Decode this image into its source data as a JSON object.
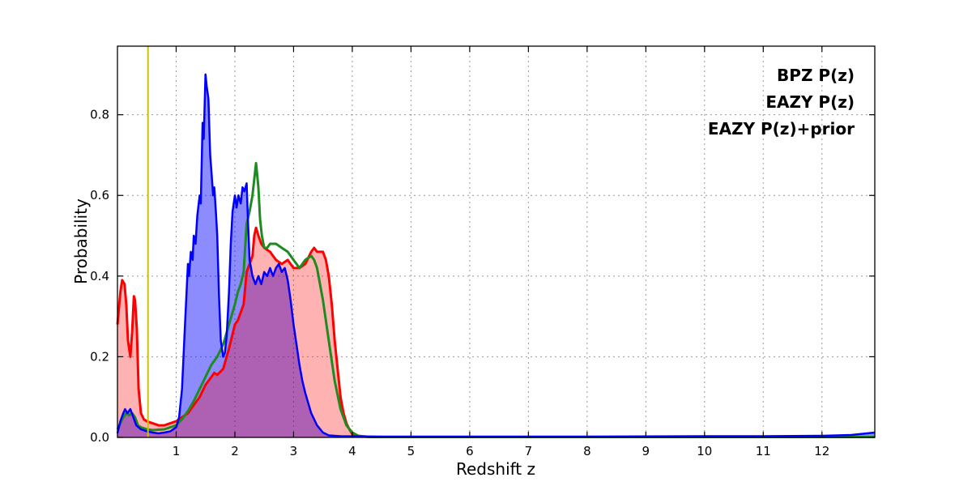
{
  "chart_data": {
    "type": "line",
    "title": "",
    "xlabel": "Redshift z",
    "ylabel": "Probability",
    "xlim": [
      0,
      12.9
    ],
    "ylim": [
      0,
      0.97
    ],
    "xticks": [
      1,
      2,
      3,
      4,
      5,
      6,
      7,
      8,
      9,
      10,
      11,
      12
    ],
    "yticks": [
      0.0,
      0.2,
      0.4,
      0.6,
      0.8
    ],
    "grid": true,
    "grid_style": "dashed",
    "legend_position": "upper right",
    "vline": {
      "x": 0.52,
      "color": "#c8c400",
      "width": 2
    },
    "series": [
      {
        "name": "BPZ P(z)",
        "color": "#0000ff",
        "fill": true,
        "fill_opacity": 0.45,
        "line_width": 2.5,
        "points": [
          [
            0,
            0.01
          ],
          [
            0.05,
            0.04
          ],
          [
            0.1,
            0.06
          ],
          [
            0.13,
            0.07
          ],
          [
            0.17,
            0.06
          ],
          [
            0.22,
            0.07
          ],
          [
            0.27,
            0.05
          ],
          [
            0.32,
            0.03
          ],
          [
            0.4,
            0.02
          ],
          [
            0.5,
            0.015
          ],
          [
            0.6,
            0.012
          ],
          [
            0.7,
            0.01
          ],
          [
            0.8,
            0.012
          ],
          [
            0.9,
            0.015
          ],
          [
            1.0,
            0.025
          ],
          [
            1.05,
            0.05
          ],
          [
            1.1,
            0.12
          ],
          [
            1.15,
            0.28
          ],
          [
            1.2,
            0.43
          ],
          [
            1.22,
            0.4
          ],
          [
            1.25,
            0.46
          ],
          [
            1.28,
            0.44
          ],
          [
            1.3,
            0.5
          ],
          [
            1.33,
            0.48
          ],
          [
            1.36,
            0.55
          ],
          [
            1.4,
            0.6
          ],
          [
            1.42,
            0.58
          ],
          [
            1.45,
            0.78
          ],
          [
            1.47,
            0.74
          ],
          [
            1.5,
            0.9
          ],
          [
            1.52,
            0.87
          ],
          [
            1.55,
            0.84
          ],
          [
            1.58,
            0.7
          ],
          [
            1.6,
            0.66
          ],
          [
            1.63,
            0.6
          ],
          [
            1.65,
            0.62
          ],
          [
            1.68,
            0.55
          ],
          [
            1.7,
            0.5
          ],
          [
            1.73,
            0.35
          ],
          [
            1.76,
            0.24
          ],
          [
            1.8,
            0.2
          ],
          [
            1.83,
            0.21
          ],
          [
            1.86,
            0.25
          ],
          [
            1.9,
            0.36
          ],
          [
            1.93,
            0.48
          ],
          [
            1.96,
            0.56
          ],
          [
            2.0,
            0.6
          ],
          [
            2.03,
            0.57
          ],
          [
            2.06,
            0.6
          ],
          [
            2.1,
            0.58
          ],
          [
            2.13,
            0.62
          ],
          [
            2.16,
            0.61
          ],
          [
            2.2,
            0.63
          ],
          [
            2.22,
            0.55
          ],
          [
            2.25,
            0.44
          ],
          [
            2.3,
            0.4
          ],
          [
            2.35,
            0.38
          ],
          [
            2.4,
            0.4
          ],
          [
            2.45,
            0.38
          ],
          [
            2.5,
            0.41
          ],
          [
            2.55,
            0.4
          ],
          [
            2.6,
            0.42
          ],
          [
            2.65,
            0.4
          ],
          [
            2.7,
            0.42
          ],
          [
            2.75,
            0.43
          ],
          [
            2.8,
            0.41
          ],
          [
            2.85,
            0.42
          ],
          [
            2.9,
            0.39
          ],
          [
            2.95,
            0.34
          ],
          [
            3.0,
            0.28
          ],
          [
            3.05,
            0.23
          ],
          [
            3.1,
            0.18
          ],
          [
            3.15,
            0.14
          ],
          [
            3.2,
            0.11
          ],
          [
            3.3,
            0.06
          ],
          [
            3.4,
            0.03
          ],
          [
            3.5,
            0.012
          ],
          [
            3.6,
            0.005
          ],
          [
            3.8,
            0.003
          ],
          [
            4.5,
            0.002
          ],
          [
            6,
            0.002
          ],
          [
            8,
            0.002
          ],
          [
            10,
            0.003
          ],
          [
            11,
            0.003
          ],
          [
            12,
            0.004
          ],
          [
            12.5,
            0.006
          ],
          [
            12.9,
            0.012
          ]
        ]
      },
      {
        "name": "EAZY P(z)",
        "color": "#ff0000",
        "fill": true,
        "fill_opacity": 0.3,
        "line_width": 3,
        "points": [
          [
            0,
            0.28
          ],
          [
            0.05,
            0.36
          ],
          [
            0.08,
            0.39
          ],
          [
            0.12,
            0.38
          ],
          [
            0.15,
            0.33
          ],
          [
            0.18,
            0.24
          ],
          [
            0.22,
            0.2
          ],
          [
            0.25,
            0.26
          ],
          [
            0.28,
            0.35
          ],
          [
            0.3,
            0.34
          ],
          [
            0.33,
            0.27
          ],
          [
            0.36,
            0.12
          ],
          [
            0.4,
            0.06
          ],
          [
            0.45,
            0.045
          ],
          [
            0.5,
            0.04
          ],
          [
            0.6,
            0.035
          ],
          [
            0.7,
            0.03
          ],
          [
            0.8,
            0.03
          ],
          [
            0.9,
            0.035
          ],
          [
            1.0,
            0.04
          ],
          [
            1.1,
            0.05
          ],
          [
            1.2,
            0.06
          ],
          [
            1.3,
            0.08
          ],
          [
            1.4,
            0.1
          ],
          [
            1.5,
            0.13
          ],
          [
            1.6,
            0.15
          ],
          [
            1.65,
            0.16
          ],
          [
            1.7,
            0.155
          ],
          [
            1.8,
            0.17
          ],
          [
            1.9,
            0.22
          ],
          [
            2.0,
            0.28
          ],
          [
            2.05,
            0.29
          ],
          [
            2.1,
            0.31
          ],
          [
            2.15,
            0.33
          ],
          [
            2.2,
            0.41
          ],
          [
            2.25,
            0.43
          ],
          [
            2.3,
            0.45
          ],
          [
            2.33,
            0.5
          ],
          [
            2.36,
            0.52
          ],
          [
            2.4,
            0.5
          ],
          [
            2.45,
            0.48
          ],
          [
            2.5,
            0.47
          ],
          [
            2.6,
            0.46
          ],
          [
            2.7,
            0.44
          ],
          [
            2.8,
            0.43
          ],
          [
            2.9,
            0.44
          ],
          [
            3.0,
            0.42
          ],
          [
            3.1,
            0.42
          ],
          [
            3.2,
            0.43
          ],
          [
            3.3,
            0.46
          ],
          [
            3.35,
            0.47
          ],
          [
            3.4,
            0.46
          ],
          [
            3.5,
            0.46
          ],
          [
            3.55,
            0.44
          ],
          [
            3.6,
            0.4
          ],
          [
            3.65,
            0.33
          ],
          [
            3.7,
            0.24
          ],
          [
            3.75,
            0.17
          ],
          [
            3.8,
            0.1
          ],
          [
            3.85,
            0.06
          ],
          [
            3.9,
            0.035
          ],
          [
            3.95,
            0.02
          ],
          [
            4.0,
            0.008
          ],
          [
            4.1,
            0.003
          ],
          [
            4.3,
            0.001
          ],
          [
            12.9,
            0.001
          ]
        ]
      },
      {
        "name": "EAZY P(z)+prior",
        "color": "#1f8a1f",
        "fill": false,
        "fill_opacity": 0,
        "line_width": 3,
        "points": [
          [
            0,
            0.02
          ],
          [
            0.1,
            0.05
          ],
          [
            0.15,
            0.06
          ],
          [
            0.2,
            0.055
          ],
          [
            0.25,
            0.06
          ],
          [
            0.3,
            0.05
          ],
          [
            0.35,
            0.03
          ],
          [
            0.4,
            0.025
          ],
          [
            0.5,
            0.02
          ],
          [
            0.6,
            0.018
          ],
          [
            0.8,
            0.02
          ],
          [
            1.0,
            0.03
          ],
          [
            1.1,
            0.045
          ],
          [
            1.2,
            0.065
          ],
          [
            1.3,
            0.09
          ],
          [
            1.4,
            0.12
          ],
          [
            1.5,
            0.15
          ],
          [
            1.6,
            0.18
          ],
          [
            1.7,
            0.2
          ],
          [
            1.8,
            0.23
          ],
          [
            1.9,
            0.28
          ],
          [
            2.0,
            0.33
          ],
          [
            2.05,
            0.36
          ],
          [
            2.1,
            0.38
          ],
          [
            2.15,
            0.41
          ],
          [
            2.2,
            0.53
          ],
          [
            2.25,
            0.56
          ],
          [
            2.3,
            0.6
          ],
          [
            2.33,
            0.64
          ],
          [
            2.36,
            0.68
          ],
          [
            2.4,
            0.62
          ],
          [
            2.43,
            0.54
          ],
          [
            2.46,
            0.5
          ],
          [
            2.5,
            0.47
          ],
          [
            2.55,
            0.47
          ],
          [
            2.6,
            0.48
          ],
          [
            2.7,
            0.48
          ],
          [
            2.8,
            0.47
          ],
          [
            2.9,
            0.46
          ],
          [
            3.0,
            0.44
          ],
          [
            3.1,
            0.42
          ],
          [
            3.15,
            0.43
          ],
          [
            3.2,
            0.44
          ],
          [
            3.3,
            0.45
          ],
          [
            3.35,
            0.44
          ],
          [
            3.4,
            0.42
          ],
          [
            3.5,
            0.34
          ],
          [
            3.6,
            0.24
          ],
          [
            3.7,
            0.14
          ],
          [
            3.8,
            0.07
          ],
          [
            3.9,
            0.03
          ],
          [
            4.0,
            0.012
          ],
          [
            4.1,
            0.004
          ],
          [
            4.3,
            0.001
          ],
          [
            12.9,
            0.001
          ]
        ]
      }
    ]
  }
}
